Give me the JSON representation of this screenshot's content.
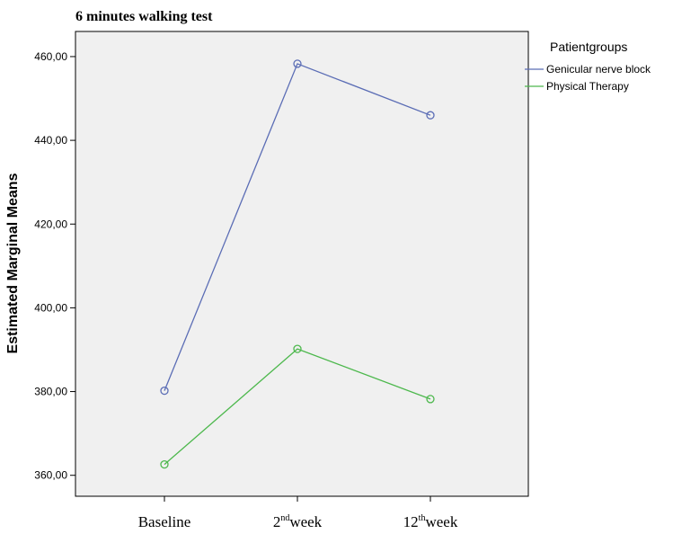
{
  "chart_data": {
    "type": "line",
    "title": "6 minutes walking test",
    "ylabel": "Estimated Marginal Means",
    "xlabel": "",
    "categories": [
      {
        "base": "Baseline",
        "sup": "",
        "tail": ""
      },
      {
        "base": "2",
        "sup": "nd",
        "tail": "week"
      },
      {
        "base": "12",
        "sup": "th",
        "tail": "week"
      }
    ],
    "ylim": [
      355,
      466
    ],
    "yticks": [
      360,
      380,
      400,
      420,
      440,
      460
    ],
    "ytick_labels": [
      "360,00",
      "380,00",
      "400,00",
      "420,00",
      "440,00",
      "460,00"
    ],
    "legend_title": "Patientgroups",
    "legend_position": "top-right, outside plot",
    "plot_background": "#f0f0f0",
    "grid": false,
    "series": [
      {
        "name": "Genicular nerve block",
        "color": "#5b6db5",
        "values": [
          380.2,
          458.3,
          446.0
        ]
      },
      {
        "name": "Physical Therapy",
        "color": "#4db84d",
        "values": [
          362.6,
          390.2,
          378.2
        ]
      }
    ]
  }
}
